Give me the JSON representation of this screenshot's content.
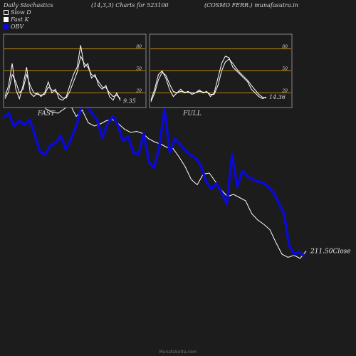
{
  "header": {
    "title": "Daily Stochastics",
    "params": "(14,3,3) Charts for 523100",
    "company": "(COSMO FERR.) munafasutra.in"
  },
  "legend": [
    {
      "label": "Slow  D",
      "key": "slow"
    },
    {
      "label": "Fast K",
      "key": "fast"
    },
    {
      "label": "OBV",
      "key": "obv"
    }
  ],
  "footer": "MunafaSutra.com",
  "colors": {
    "background": "#1c1c1c",
    "panel_border": "#888888",
    "level_line": "#b8860b",
    "obv": "#0a0ad6",
    "price": "#ffffff",
    "stoch": "#ffffff"
  },
  "chart_data": [
    {
      "type": "line",
      "title": "FAST",
      "ylim": [
        0,
        100
      ],
      "yticks": [
        20,
        50,
        80
      ],
      "levels": [
        20,
        50,
        80
      ],
      "last_value_label": "9.35",
      "series": [
        {
          "name": "Fast K",
          "values": [
            15,
            30,
            60,
            25,
            12,
            30,
            55,
            20,
            15,
            20,
            15,
            20,
            35,
            20,
            25,
            12,
            10,
            15,
            30,
            45,
            55,
            85,
            55,
            60,
            40,
            45,
            30,
            25,
            30,
            15,
            10,
            20,
            9.35
          ]
        },
        {
          "name": "Slow D",
          "values": [
            12,
            22,
            45,
            35,
            20,
            25,
            45,
            30,
            20,
            18,
            17,
            18,
            28,
            24,
            22,
            18,
            13,
            13,
            22,
            35,
            48,
            70,
            60,
            55,
            45,
            42,
            35,
            28,
            27,
            20,
            15,
            17,
            12
          ]
        }
      ]
    },
    {
      "type": "line",
      "title": "FULL",
      "ylim": [
        0,
        100
      ],
      "yticks": [
        20,
        50,
        80
      ],
      "levels": [
        20,
        50,
        80
      ],
      "last_value_label": "14.36",
      "series": [
        {
          "name": "Full K",
          "values": [
            10,
            25,
            45,
            50,
            40,
            25,
            15,
            20,
            25,
            20,
            22,
            18,
            20,
            24,
            20,
            22,
            15,
            20,
            40,
            60,
            70,
            68,
            55,
            50,
            45,
            40,
            35,
            25,
            20,
            15,
            12,
            14.36
          ]
        },
        {
          "name": "Full D",
          "values": [
            8,
            20,
            38,
            48,
            44,
            32,
            22,
            20,
            22,
            21,
            21,
            20,
            20,
            22,
            21,
            21,
            18,
            18,
            30,
            50,
            62,
            66,
            60,
            53,
            47,
            42,
            37,
            30,
            24,
            18,
            14,
            13
          ]
        }
      ]
    },
    {
      "type": "line",
      "title": "",
      "close_label": "211.50Close",
      "series": [
        {
          "name": "OBV",
          "values": [
            10,
            14,
            2,
            7,
            3,
            8,
            -6,
            -22,
            -25,
            -16,
            -14,
            -7,
            -20,
            -10,
            2,
            21,
            21,
            14,
            8,
            -9,
            4,
            11,
            3,
            -12,
            -8,
            -23,
            -25,
            -5,
            -32,
            -37,
            -17,
            18,
            -23,
            -10,
            -15,
            -21,
            -25,
            -28,
            -35,
            -50,
            -57,
            -52,
            -60,
            -71,
            -25,
            -55,
            -40,
            -45,
            -48,
            -50,
            -51,
            -55,
            -60,
            -70,
            -80,
            -110,
            -118,
            -116,
            -120
          ]
        },
        {
          "name": "Close",
          "values": [
            40,
            39,
            42,
            38,
            30,
            35,
            29,
            18,
            15,
            14,
            18,
            22,
            11,
            17,
            5,
            2,
            4,
            7,
            8,
            4,
            -1,
            -4,
            -3,
            -5,
            -10,
            -13,
            -15,
            -18,
            -19,
            -27,
            -36,
            -48,
            -53,
            -43,
            -42,
            -50,
            -58,
            -64,
            -62,
            -65,
            -68,
            -80,
            -86,
            -90,
            -95,
            -107,
            -118,
            -121,
            -119,
            -122,
            -115
          ]
        }
      ]
    }
  ]
}
